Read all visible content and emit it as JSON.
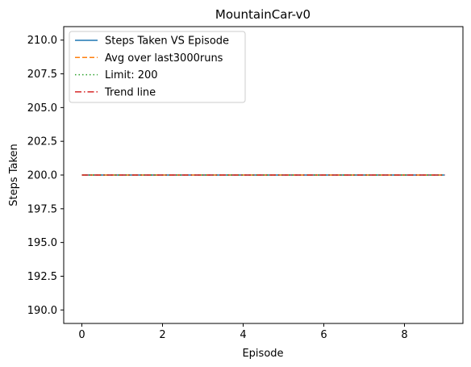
{
  "chart_data": {
    "type": "line",
    "title": "MountainCar-v0",
    "xlabel": "Episode",
    "ylabel": "Steps Taken",
    "xlim": [
      -0.45,
      9.45
    ],
    "ylim": [
      189,
      211
    ],
    "xticks": [
      0,
      2,
      4,
      6,
      8
    ],
    "yticks": [
      190.0,
      192.5,
      195.0,
      197.5,
      200.0,
      202.5,
      205.0,
      207.5,
      210.0
    ],
    "xtick_labels": [
      "0",
      "2",
      "4",
      "6",
      "8"
    ],
    "ytick_labels": [
      "190.0",
      "192.5",
      "195.0",
      "197.5",
      "200.0",
      "202.5",
      "205.0",
      "207.5",
      "210.0"
    ],
    "grid": false,
    "legend_position": "upper-left",
    "x": [
      0,
      1,
      2,
      3,
      4,
      5,
      6,
      7,
      8,
      9
    ],
    "series": [
      {
        "name": "Steps Taken VS Episode",
        "values": [
          200,
          200,
          200,
          200,
          200,
          200,
          200,
          200,
          200,
          200
        ],
        "color": "#1f77b4",
        "style": "solid"
      },
      {
        "name": "Avg over last3000runs",
        "values": [
          200,
          200,
          200,
          200,
          200,
          200,
          200,
          200,
          200,
          200
        ],
        "color": "#ff7f0e",
        "style": "dashed"
      },
      {
        "name": "Limit: 200",
        "values": [
          200,
          200,
          200,
          200,
          200,
          200,
          200,
          200,
          200,
          200
        ],
        "color": "#2ca02c",
        "style": "dotted"
      },
      {
        "name": "Trend line",
        "values": [
          200,
          200,
          200,
          200,
          200,
          200,
          200,
          200,
          200,
          200
        ],
        "color": "#d62728",
        "style": "dashdot"
      }
    ]
  }
}
